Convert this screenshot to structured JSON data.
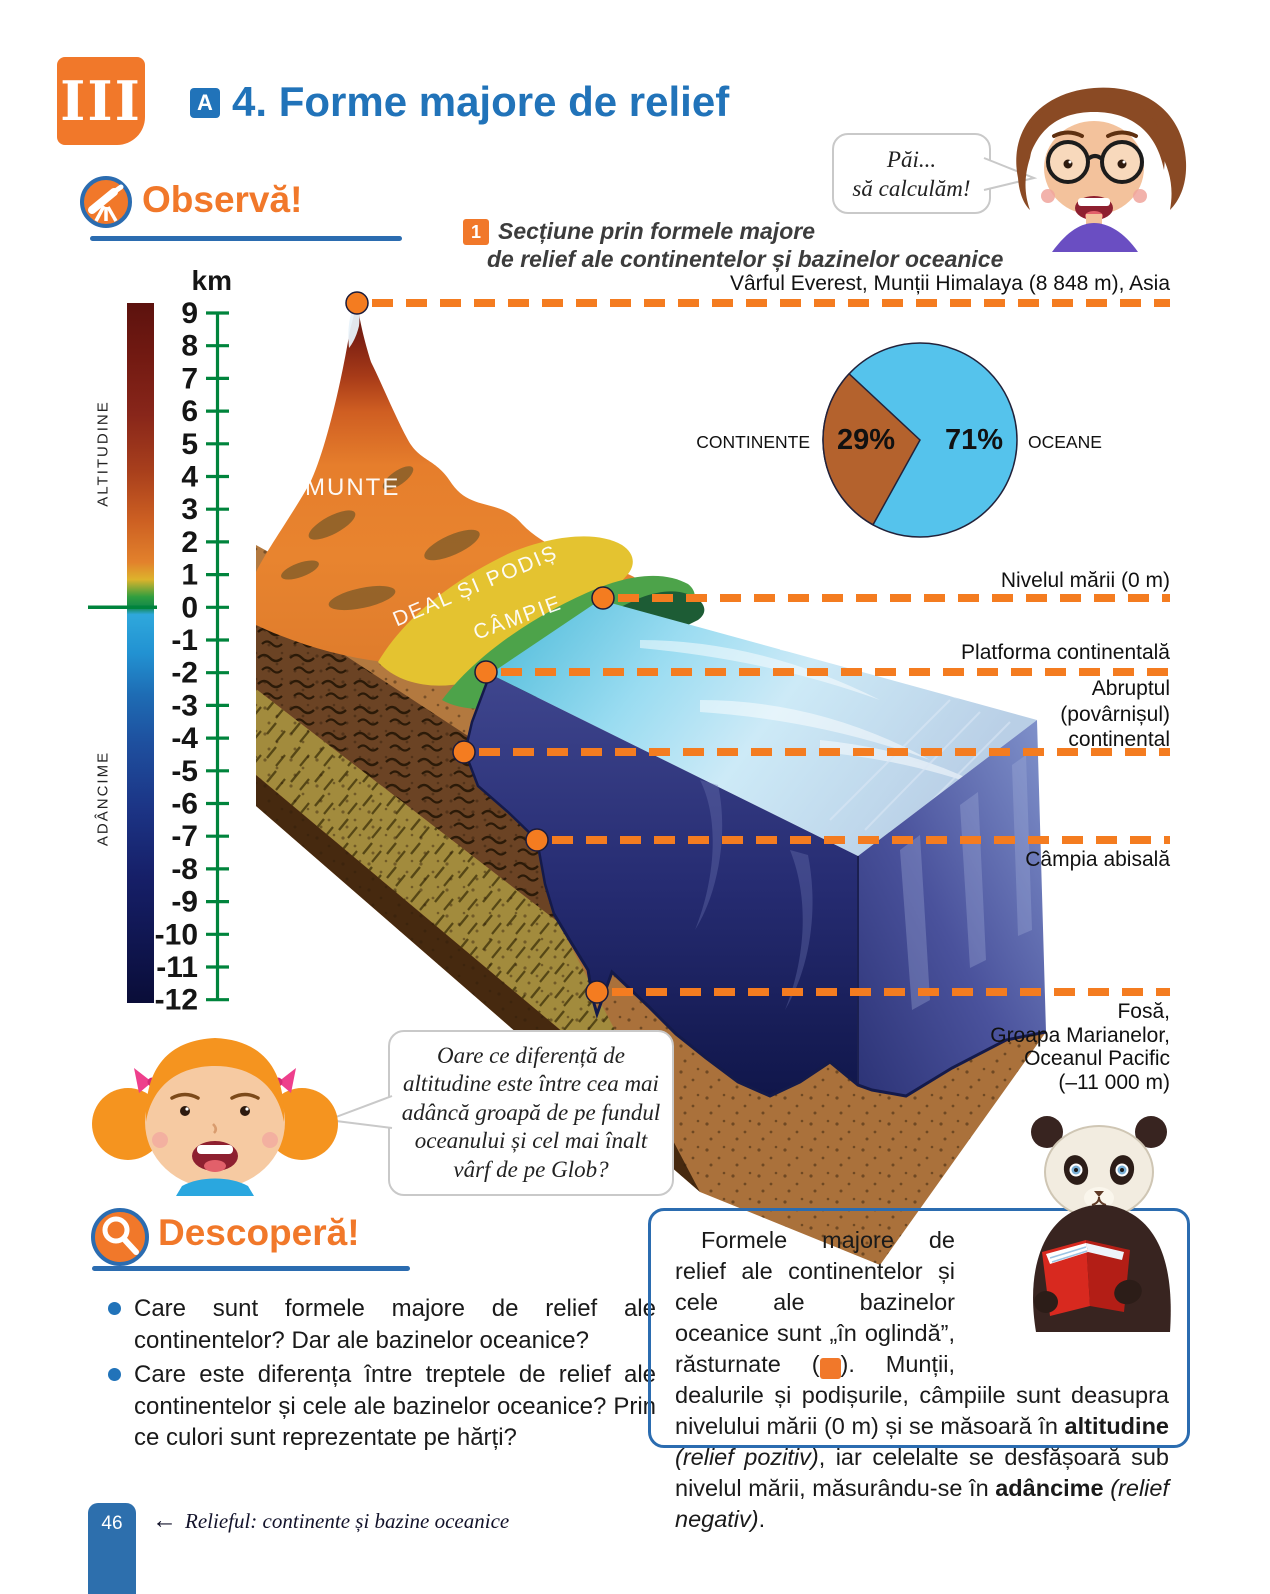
{
  "header": {
    "chapter": "III",
    "badge": "A",
    "title": "4. Forme majore de relief"
  },
  "sections": {
    "observa": "Observă!",
    "descopera": "Descoperă!"
  },
  "caption": {
    "badge": "1",
    "lines": [
      "Secțiune prin formele majore",
      "de relief ale continentelor și bazinelor oceanice"
    ]
  },
  "bubbles": {
    "boy": "Păi...\nsă calculăm!",
    "girl": "Oare ce diferență de\naltitudine este între cea mai\nadâncă groapă de pe fundul\noceanului și cel mai înalt\nvârf de pe Glob?"
  },
  "scale": {
    "unit": "km",
    "ticks": [
      9,
      8,
      7,
      6,
      5,
      4,
      3,
      2,
      1,
      0,
      -1,
      -2,
      -3,
      -4,
      -5,
      -6,
      -7,
      -8,
      -9,
      -10,
      -11,
      -12
    ],
    "altitude_label": "ALTITUDINE",
    "depth_label": "ADÂNCIME"
  },
  "diagram": {
    "surface_labels": [
      "MUNTE",
      "DEAL ȘI PODIȘ",
      "CÂMPIE"
    ]
  },
  "annotations": {
    "everest": "Vârful Everest, Munții Himalaya (8 848 m), Asia",
    "sea_level": "Nivelul mării (0 m)",
    "platform": "Platforma continentală",
    "slope": "Abruptul\n(povârnișul)\ncontinental",
    "abyssal": "Câmpia abisală",
    "trench": "Fosă,\nGroapa Marianelor,\nOceanul Pacific\n(–11 000 m)"
  },
  "chart_data": {
    "type": "pie",
    "labels": [
      "CONTINENTE",
      "OCEANE"
    ],
    "values": [
      29,
      71
    ],
    "display_values": [
      "29%",
      "71%"
    ],
    "colors": [
      "#b4622d",
      "#55c3ec"
    ],
    "legend_position": "sides"
  },
  "questions": [
    "Care sunt formele majore de relief ale continentelor? Dar ale bazinelor oceanice?",
    "Care este diferența între treptele de relief ale continentelor și cele ale bazinelor oceanice? Prin ce culori sunt reprezentate pe hărți?"
  ],
  "info_box": {
    "runs": [
      {
        "t": "Formele majore de relief ale continentelor și cele ale bazinelor oceanice sunt „în oglindă”, răsturnate ("
      },
      {
        "t": "1",
        "s": "badge"
      },
      {
        "t": "). Munții, dealurile și podișurile, câmpiile sunt deasupra nivelului mării (0 m) și se măsoară în "
      },
      {
        "t": "altitudine",
        "s": "b"
      },
      {
        "t": " "
      },
      {
        "t": "(relief pozitiv)",
        "s": "i"
      },
      {
        "t": ", iar celelalte se desfășoară sub nivelul mării, măsurându-se în "
      },
      {
        "t": "adâncime",
        "s": "b"
      },
      {
        "t": " "
      },
      {
        "t": "(relief negativ)",
        "s": "i"
      },
      {
        "t": "."
      }
    ]
  },
  "footer": {
    "page": "46",
    "arrow": "←",
    "nav": "Relieful: continente și bazine oceanice"
  },
  "colors": {
    "accent_orange": "#f1782a",
    "accent_blue": "#2173b9",
    "underline_blue": "#2b6cb0",
    "tick_green": "#00843c",
    "pie_blue": "#55c3ec",
    "pie_brown": "#b4622d",
    "footer_blue": "#2d6fad",
    "dash_orange": "#f47c20"
  }
}
